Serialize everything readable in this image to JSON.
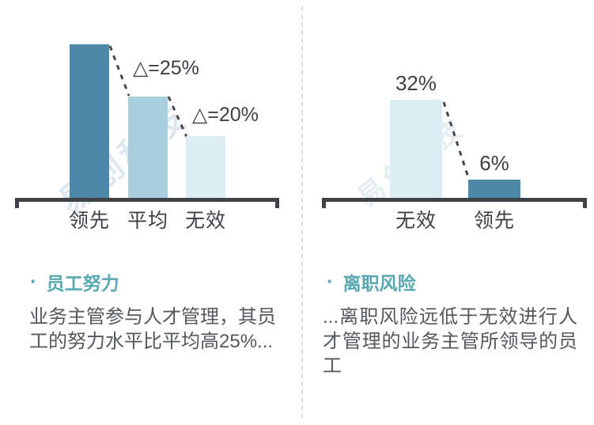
{
  "watermark": {
    "text": "易创科技"
  },
  "chart_data": [
    {
      "type": "bar",
      "title": "员工努力",
      "categories": [
        "领先",
        "平均",
        "无效"
      ],
      "values": [
        100,
        66,
        40
      ],
      "value_note": "schematic relative heights; no numeric axis shown",
      "bar_colors": [
        "#4d88a6",
        "#a9cedd",
        "#dcedf4"
      ],
      "data_labels": null,
      "annotations": [
        {
          "text": "△=25%",
          "between": [
            "领先",
            "平均"
          ]
        },
        {
          "text": "△=20%",
          "between": [
            "平均",
            "无效"
          ]
        }
      ],
      "grid": false,
      "axis": "baseline only, no ticks, end caps"
    },
    {
      "type": "bar",
      "title": "离职风险",
      "categories": [
        "无效",
        "领先"
      ],
      "values": [
        32,
        6
      ],
      "data_labels": [
        "32%",
        "6%"
      ],
      "bar_colors": [
        "#dcedf4",
        "#4d88a6"
      ],
      "annotations": null,
      "grid": false,
      "axis": "baseline only, no ticks, end caps"
    }
  ],
  "panels": [
    {
      "bullet": "·",
      "heading": "员工努力",
      "body": "业务主管参与人才管理，其员工的努力水平比平均高25%..."
    },
    {
      "bullet": "·",
      "heading": "离职风险",
      "body": "...离职风险远低于无效进行人才管理的业务主管所领导的员工"
    }
  ],
  "colors": {
    "accent_teal": "#57a8b1",
    "bar_dark": "#4d88a6",
    "bar_medium": "#a9cedd",
    "bar_light": "#dcedf4",
    "axis": "#3f4347",
    "label_text": "#3d4145",
    "body_text": "#54575b"
  }
}
